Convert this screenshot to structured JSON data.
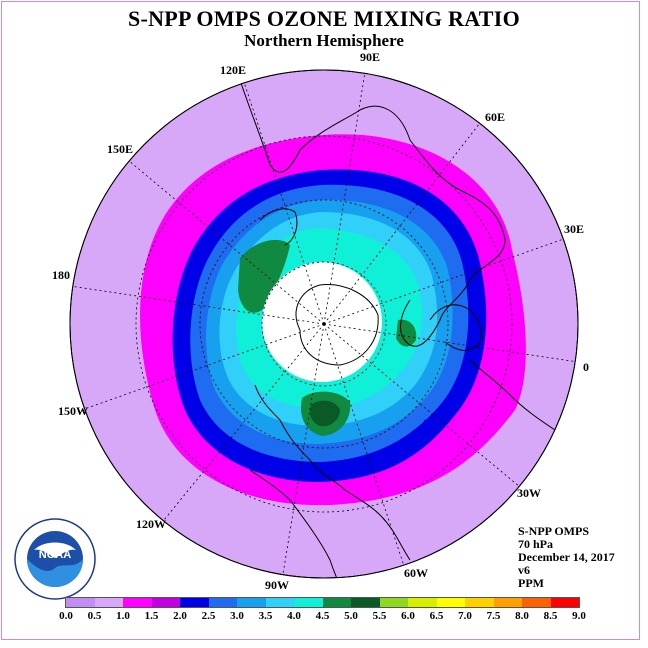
{
  "title": "S-NPP OMPS OZONE MIXING RATIO",
  "subtitle": "Northern Hemisphere",
  "longitude_labels": {
    "e90": "90E",
    "e120": "120E",
    "e60": "60E",
    "e150": "150E",
    "e30": "30E",
    "d180": "180",
    "d0": "0",
    "w150": "150W",
    "w30": "30W",
    "w120": "120W",
    "w60": "60W",
    "w90": "90W"
  },
  "info": {
    "instrument": "S-NPP OMPS",
    "level": "70 hPa",
    "date": "December 14, 2017",
    "version": "v6",
    "units": "PPM"
  },
  "logo": {
    "text": "NOAA"
  },
  "colorbar": {
    "colors": [
      "#c08ef0",
      "#d8a8f8",
      "#ff00ff",
      "#c000e0",
      "#0000e8",
      "#1e6cf0",
      "#18a0f0",
      "#30d0f8",
      "#10f0d8",
      "#108a40",
      "#0a5a28",
      "#90d820",
      "#d8f000",
      "#ffff00",
      "#ffd000",
      "#ffa000",
      "#ff6000",
      "#ff0000",
      "#8a5a3c"
    ],
    "ticks": [
      "0.0",
      "0.5",
      "1.0",
      "1.5",
      "2.0",
      "2.5",
      "3.0",
      "3.5",
      "4.0",
      "4.5",
      "5.0",
      "5.5",
      "6.0",
      "6.5",
      "7.0",
      "7.5",
      "8.0",
      "8.5",
      "9.0"
    ]
  }
}
